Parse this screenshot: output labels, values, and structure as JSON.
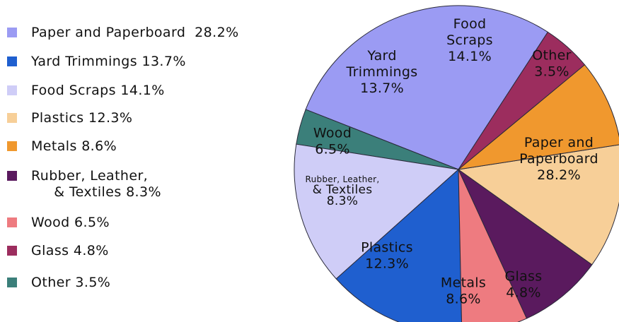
{
  "chart_data": {
    "type": "pie",
    "slices": [
      {
        "name": "Paper and Paperboard",
        "value": 28.2,
        "color": "#9b9bf3",
        "legend_label": "Paper and Paperboard  28.2%",
        "label_lines": [
          "Paper and",
          "Paperboard",
          "28.2%"
        ]
      },
      {
        "name": "Other",
        "value": 3.5,
        "color": "#3b7f7a",
        "legend_label": "Other 3.5%",
        "label_lines": [
          "Other",
          "3.5%"
        ]
      },
      {
        "name": "Food Scraps",
        "value": 14.1,
        "color": "#cfcdf7",
        "legend_label": "Food Scraps 14.1%",
        "label_lines": [
          "Food",
          "Scraps",
          "14.1%"
        ]
      },
      {
        "name": "Yard Trimmings",
        "value": 13.7,
        "color": "#1f5fcf",
        "legend_label": "Yard Trimmings 13.7%",
        "label_lines": [
          "Yard",
          "Trimmings",
          "13.7%"
        ]
      },
      {
        "name": "Wood",
        "value": 6.5,
        "color": "#ee7b80",
        "legend_label": "Wood 6.5%",
        "label_lines": [
          "Wood",
          "6.5%"
        ]
      },
      {
        "name": "Rubber, Leather, & Textiles",
        "value": 8.3,
        "color": "#5a1a5e",
        "legend_label": "Rubber, Leather,\n     & Textiles 8.3%",
        "label_lines": [
          "Rubber, Leather,",
          "& Textiles",
          "8.3%"
        ]
      },
      {
        "name": "Plastics",
        "value": 12.3,
        "color": "#f7cf98",
        "legend_label": "Plastics 12.3%",
        "label_lines": [
          "Plastics",
          "12.3%"
        ]
      },
      {
        "name": "Metals",
        "value": 8.6,
        "color": "#f0982e",
        "legend_label": "Metals 8.6%",
        "label_lines": [
          "Metals",
          "8.6%"
        ]
      },
      {
        "name": "Glass",
        "value": 4.8,
        "color": "#9c2d5e",
        "legend_label": "Glass 4.8%",
        "label_lines": [
          "Glass",
          "4.8%"
        ]
      }
    ],
    "legend_order": [
      "Paper and Paperboard",
      "Yard Trimmings",
      "Food Scraps",
      "Plastics",
      "Metals",
      "Rubber, Leather, & Textiles",
      "Wood",
      "Glass",
      "Other"
    ],
    "legend_position": "left"
  }
}
